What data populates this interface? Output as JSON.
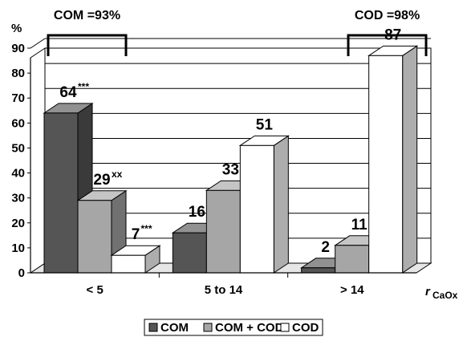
{
  "chart_data": {
    "type": "bar",
    "ylabel": "%",
    "xlabel_main": "r",
    "xlabel_sub": "CaOx",
    "ylim": [
      0,
      90
    ],
    "yticks": [
      0,
      10,
      20,
      30,
      40,
      50,
      60,
      70,
      80,
      90
    ],
    "categories": [
      "< 5",
      "5 to 14",
      "> 14"
    ],
    "series": [
      {
        "name": "COM",
        "values": [
          64,
          16,
          2
        ],
        "labels": [
          "64",
          "16",
          "2"
        ],
        "sup": [
          "***",
          "",
          ""
        ],
        "color": "#555555"
      },
      {
        "name": "COM + COD",
        "values": [
          29,
          33,
          11
        ],
        "labels": [
          "29",
          "33",
          "11"
        ],
        "sup": [
          "xx",
          "",
          ""
        ],
        "color": "#a6a6a6"
      },
      {
        "name": "COD",
        "values": [
          7,
          51,
          87
        ],
        "labels": [
          "7",
          "51",
          "87"
        ],
        "sup": [
          "***",
          "",
          ""
        ],
        "color": "#ffffff"
      }
    ],
    "annotations": [
      {
        "text": "COM =93%",
        "category_index": 0
      },
      {
        "text": "COD =98%",
        "category_index": 2
      }
    ],
    "legend_position": "bottom",
    "grid": true
  }
}
